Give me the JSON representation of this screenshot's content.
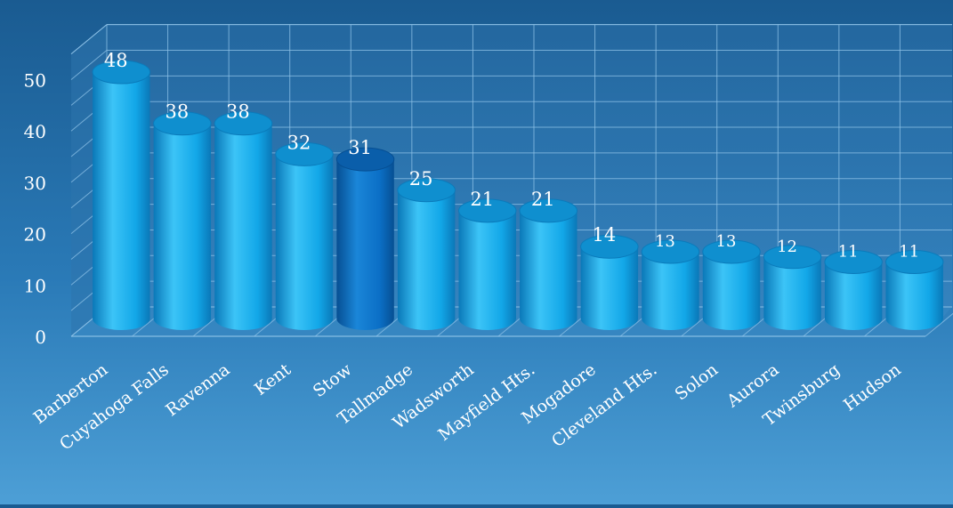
{
  "chart_data": {
    "type": "bar",
    "title": "",
    "xlabel": "",
    "ylabel": "",
    "categories": [
      "Barberton",
      "Cuyahoga Falls",
      "Ravenna",
      "Kent",
      "Stow",
      "Tallmadge",
      "Wadsworth",
      "Mayfield Hts.",
      "Mogadore",
      "Cleveland Hts.",
      "Solon",
      "Aurora",
      "Twinsburg",
      "Hudson"
    ],
    "values": [
      48,
      38,
      38,
      32,
      31,
      25,
      21,
      21,
      14,
      13,
      13,
      12,
      11,
      11
    ],
    "data_labels": [
      "48",
      "38",
      "38",
      "32",
      "31",
      "25",
      "21",
      "21",
      "14",
      "13",
      "13",
      "12",
      "11",
      "11"
    ],
    "yticks": [
      0,
      10,
      20,
      30,
      40,
      50
    ],
    "ytick_labels": [
      "0",
      "10",
      "20",
      "30",
      "40",
      "50"
    ],
    "ylim": [
      0,
      55
    ],
    "grid": true,
    "highlight_category": "Stow",
    "colors": {
      "bar": "#12a7e8",
      "bar_highlight": "#0b6fc6",
      "grid": "#8fc3e8",
      "text": "#ffffff"
    }
  }
}
